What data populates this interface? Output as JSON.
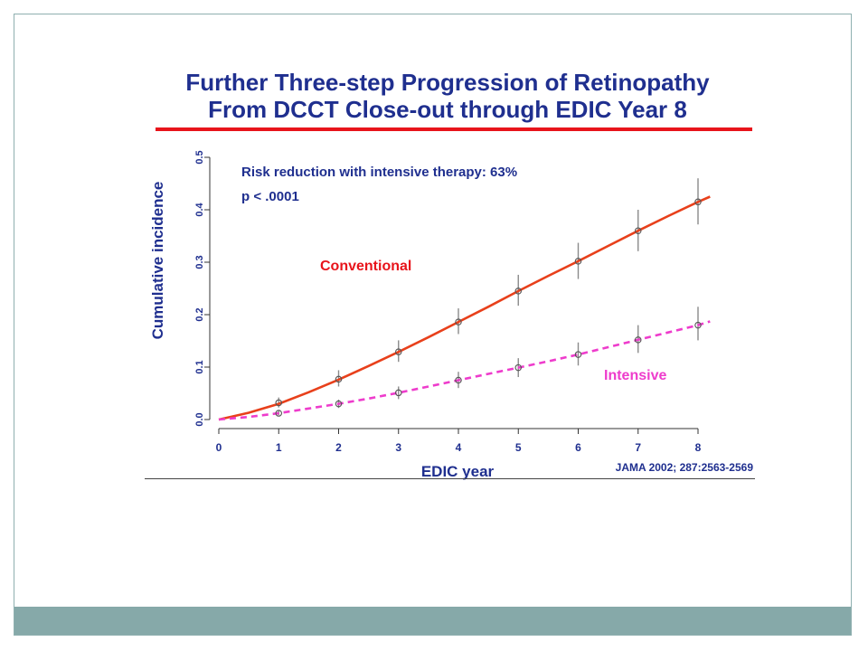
{
  "slide": {
    "title_line1": "Further Three-step Progression of Retinopathy",
    "title_line2": "From DCCT Close-out through EDIC Year 8",
    "citation": "JAMA 2002; 287:2563-2569",
    "colors": {
      "title": "#1f2f8f",
      "title_rule": "#e8141b",
      "footer": "#86a9a9"
    }
  },
  "chart_data": {
    "type": "line",
    "xlabel": "EDIC year",
    "ylabel": "Cumulative incidence",
    "x_ticks": [
      "0",
      "1",
      "2",
      "3",
      "4",
      "5",
      "6",
      "7",
      "8"
    ],
    "y_ticks": [
      "0.0",
      "0.1",
      "0.2",
      "0.3",
      "0.4",
      "0.5"
    ],
    "xlim": [
      0,
      8
    ],
    "ylim": [
      0,
      0.5
    ],
    "grid": false,
    "annotations": [
      "Risk reduction with intensive therapy: 63%",
      "p < .0001"
    ],
    "series": [
      {
        "name": "Conventional",
        "color": "#e8401b",
        "style": "solid",
        "x": [
          1,
          2,
          3,
          4,
          5,
          6,
          7,
          8
        ],
        "y": [
          0.032,
          0.077,
          0.129,
          0.186,
          0.245,
          0.302,
          0.36,
          0.415
        ],
        "err_low": [
          0.023,
          0.063,
          0.11,
          0.163,
          0.217,
          0.268,
          0.321,
          0.372
        ],
        "err_high": [
          0.042,
          0.094,
          0.151,
          0.212,
          0.276,
          0.337,
          0.4,
          0.46
        ],
        "curve_x": [
          0,
          0.5,
          1,
          1.5,
          2,
          2.5,
          3,
          3.5,
          4,
          4.5,
          5,
          5.5,
          6,
          6.5,
          7,
          7.5,
          8,
          8.2
        ],
        "curve_y": [
          0,
          0.013,
          0.03,
          0.052,
          0.076,
          0.102,
          0.129,
          0.157,
          0.186,
          0.215,
          0.245,
          0.274,
          0.302,
          0.331,
          0.36,
          0.388,
          0.415,
          0.425
        ]
      },
      {
        "name": "Intensive",
        "color": "#ee3ccc",
        "style": "dashed",
        "x": [
          1,
          2,
          3,
          4,
          5,
          6,
          7,
          8
        ],
        "y": [
          0.012,
          0.03,
          0.051,
          0.075,
          0.099,
          0.124,
          0.152,
          0.18
        ],
        "err_low": [
          0.008,
          0.022,
          0.039,
          0.06,
          0.081,
          0.103,
          0.127,
          0.151
        ],
        "err_high": [
          0.017,
          0.038,
          0.063,
          0.091,
          0.117,
          0.147,
          0.18,
          0.215
        ],
        "curve_x": [
          0,
          0.5,
          1,
          1.5,
          2,
          2.5,
          3,
          3.5,
          4,
          4.5,
          5,
          5.5,
          6,
          6.5,
          7,
          7.5,
          8,
          8.2
        ],
        "curve_y": [
          0,
          0.005,
          0.012,
          0.021,
          0.03,
          0.04,
          0.051,
          0.063,
          0.075,
          0.087,
          0.099,
          0.111,
          0.124,
          0.138,
          0.152,
          0.166,
          0.18,
          0.187
        ]
      }
    ]
  }
}
